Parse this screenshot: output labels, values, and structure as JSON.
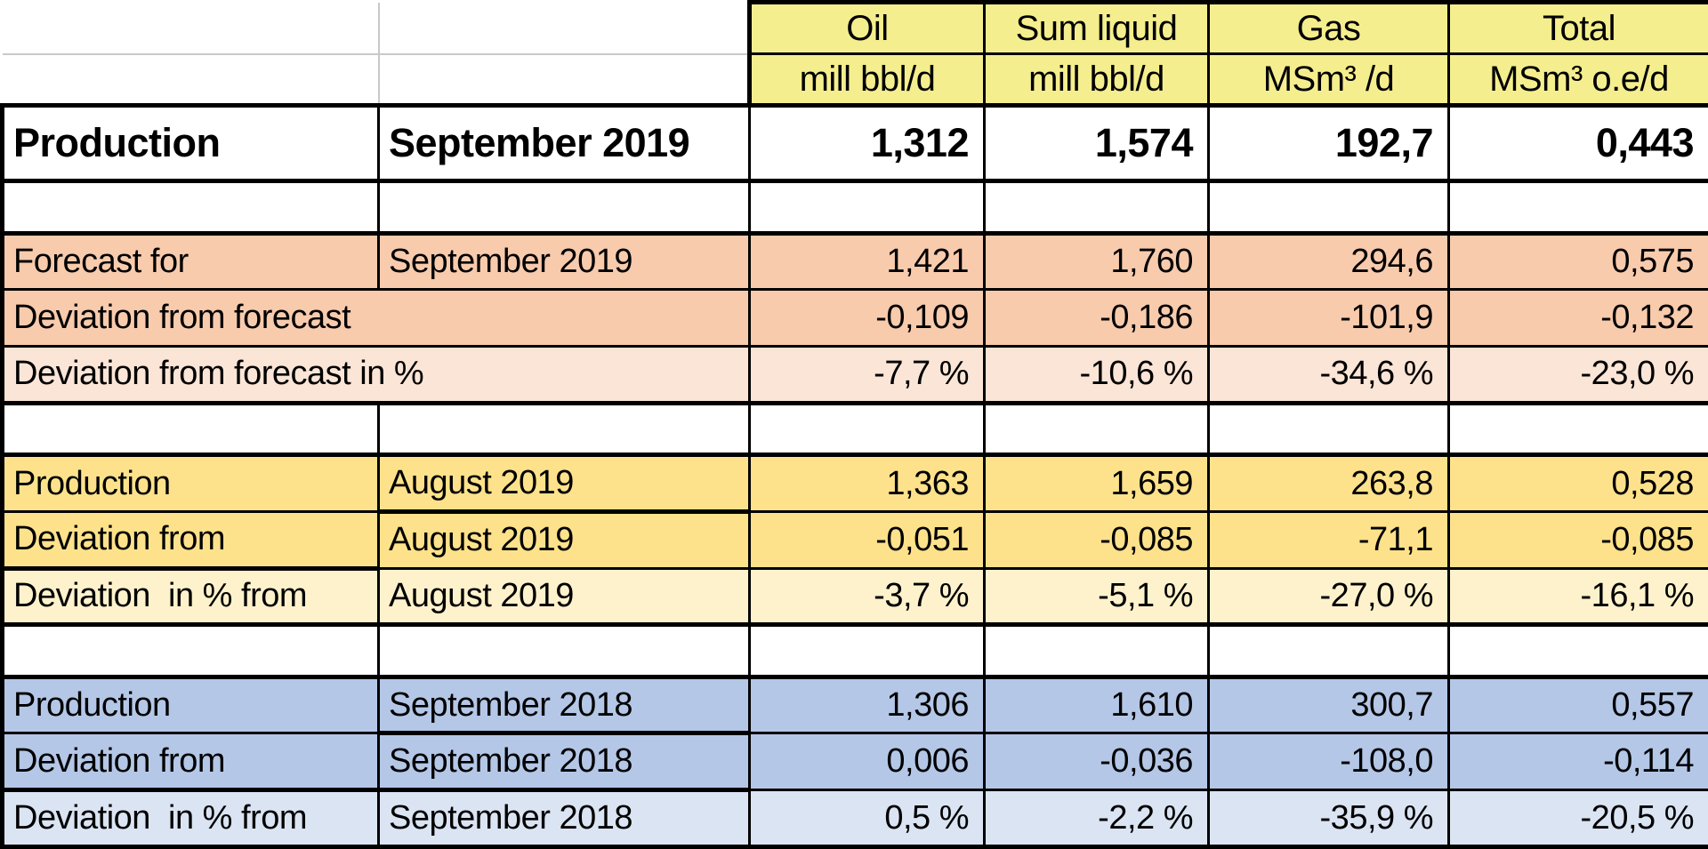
{
  "colors": {
    "header-yellow": "#F5EE8E",
    "orange": "#F8CBAD",
    "orange-light": "#FBE5D6",
    "gold": "#FEE28B",
    "gold-light": "#FEF2CC",
    "blue": "#B4C7E7",
    "blue-light": "#DBE4F2",
    "grid-gray": "#C9C9C9",
    "border-black": "#000000"
  },
  "table": {
    "header": {
      "titles": [
        "",
        "",
        "Oil",
        "Sum liquid",
        "Gas",
        "Total"
      ],
      "units": [
        "",
        "",
        "mill bbl/d",
        "mill bbl/d",
        "MSm³ /d",
        "MSm³ o.e/d"
      ]
    },
    "body_rows": [
      {
        "style": "main",
        "label": "Production",
        "month": "September 2019",
        "values": [
          "1,312",
          "1,574",
          "192,7",
          "0,443"
        ]
      },
      {
        "style": "spacer"
      },
      {
        "style": "forecast",
        "label": "Forecast for",
        "month": "September 2019",
        "values": [
          "1,421",
          "1,760",
          "294,6",
          "0,575"
        ]
      },
      {
        "style": "forecast",
        "merged_label": "Deviation from forecast",
        "values": [
          "-0,109",
          "-0,186",
          "-101,9",
          "-0,132"
        ]
      },
      {
        "style": "forecast-light",
        "merged_label": "Deviation from forecast in %",
        "values": [
          "-7,7 %",
          "-10,6 %",
          "-34,6 %",
          "-23,0 %"
        ]
      },
      {
        "style": "spacer"
      },
      {
        "style": "august",
        "label": "Production",
        "month": "August 2019",
        "values": [
          "1,363",
          "1,659",
          "263,8",
          "0,528"
        ]
      },
      {
        "style": "august",
        "label": "Deviation from",
        "month": "August 2019",
        "values": [
          "-0,051",
          "-0,085",
          "-71,1",
          "-0,085"
        ]
      },
      {
        "style": "august-light",
        "label": "Deviation  in % from",
        "month": "August 2019",
        "values": [
          "-3,7 %",
          "-5,1 %",
          "-27,0 %",
          "-16,1 %"
        ]
      },
      {
        "style": "spacer"
      },
      {
        "style": "previous-year",
        "label": "Production",
        "month": "September 2018",
        "values": [
          "1,306",
          "1,610",
          "300,7",
          "0,557"
        ]
      },
      {
        "style": "previous-year",
        "label": "Deviation from",
        "month": "September 2018",
        "values": [
          "0,006",
          "-0,036",
          "-108,0",
          "-0,114"
        ]
      },
      {
        "style": "previous-year-light",
        "label": "Deviation  in % from",
        "month": "September 2018",
        "values": [
          "0,5 %",
          "-2,2 %",
          "-35,9 %",
          "-20,5 %"
        ]
      }
    ]
  }
}
